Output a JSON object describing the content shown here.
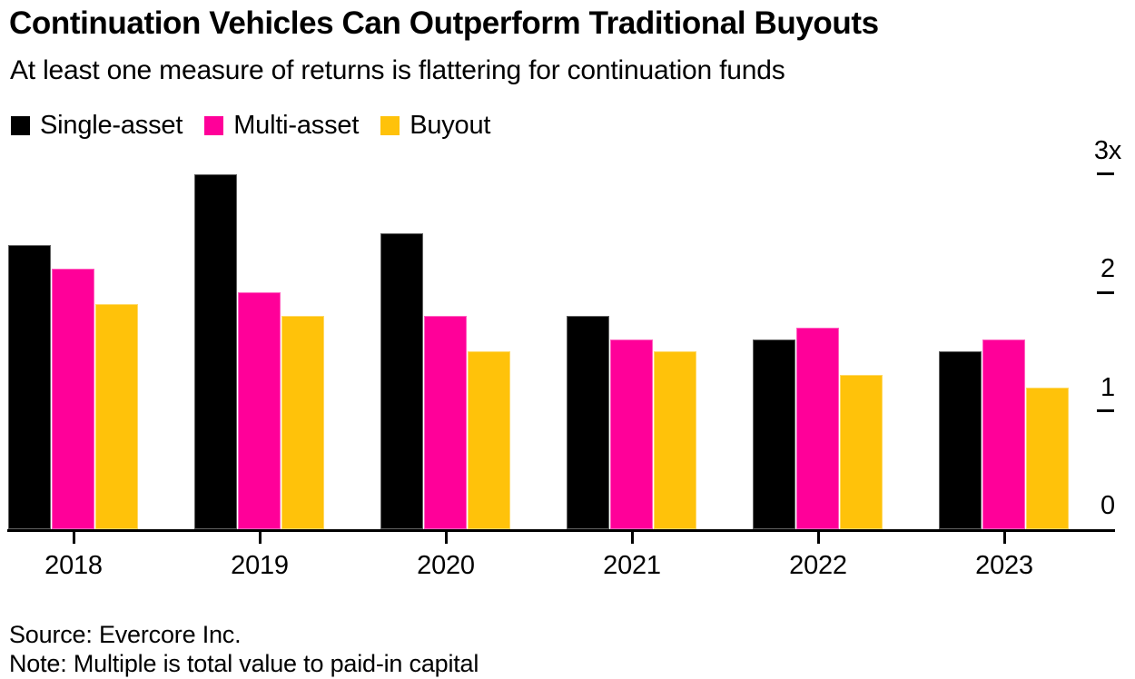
{
  "chart_data": {
    "type": "bar",
    "title": "Continuation Vehicles Can Outperform Traditional Buyouts",
    "subtitle": "At least one measure of returns is flattering for continuation funds",
    "categories": [
      "2018",
      "2019",
      "2020",
      "2021",
      "2022",
      "2023"
    ],
    "series": [
      {
        "name": "Single-asset",
        "color": "#000000",
        "values": [
          2.4,
          3.0,
          2.5,
          1.8,
          1.6,
          1.5
        ]
      },
      {
        "name": "Multi-asset",
        "color": "#FF0099",
        "values": [
          2.2,
          2.0,
          1.8,
          1.6,
          1.7,
          1.6
        ]
      },
      {
        "name": "Buyout",
        "color": "#FFC20A",
        "values": [
          1.9,
          1.8,
          1.5,
          1.5,
          1.3,
          1.2
        ]
      }
    ],
    "xlabel": "",
    "ylabel": "",
    "ylim": [
      0,
      3
    ],
    "yticks": [
      {
        "value": 0,
        "label": "0"
      },
      {
        "value": 1,
        "label": "1"
      },
      {
        "value": 2,
        "label": "2"
      },
      {
        "value": 3,
        "label": "3x"
      }
    ],
    "unit_suffix": "x",
    "grid": false,
    "legend_position": "top-left",
    "source": "Source: Evercore Inc.",
    "note": "Note: Multiple is total value to paid-in capital"
  }
}
